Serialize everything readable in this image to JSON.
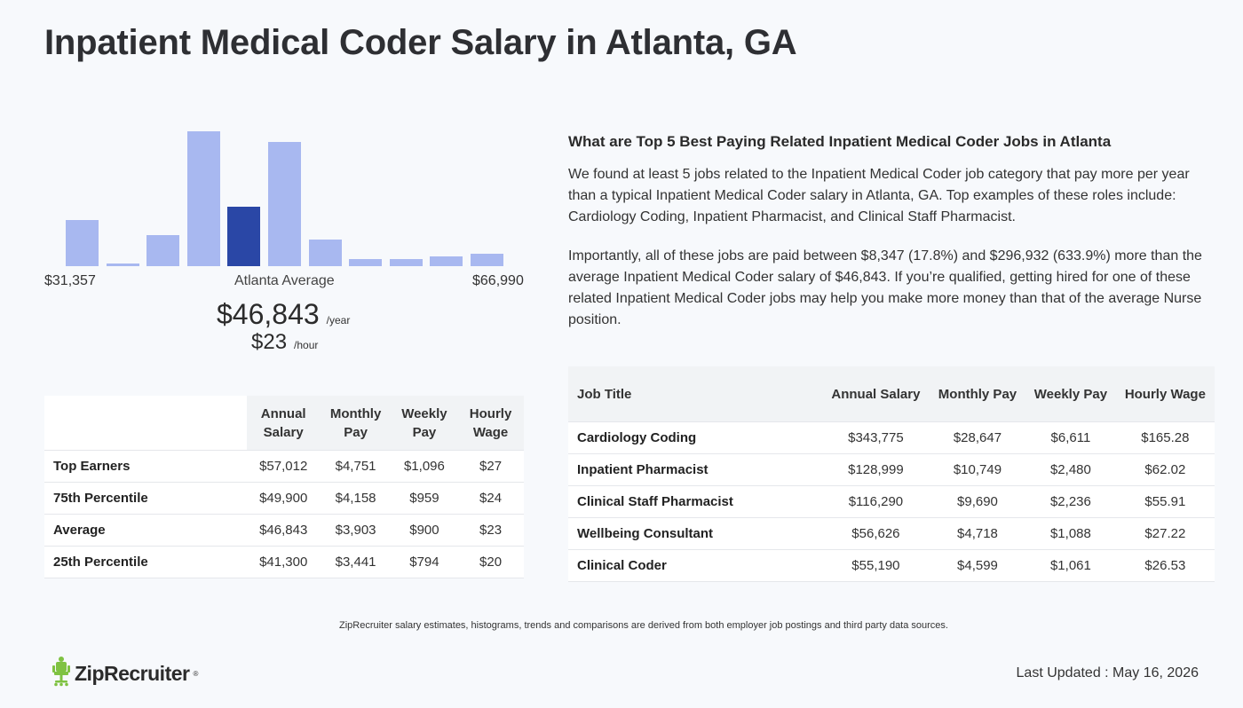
{
  "page": {
    "title": "Inpatient Medical Coder Salary in Atlanta, GA"
  },
  "histogram": {
    "min_label": "$31,357",
    "max_label": "$66,990",
    "avg_label": "Atlanta Average",
    "bar_color": "#a8b8f0",
    "active_color": "#2a47a6",
    "bars": [
      0.34,
      0.02,
      0.23,
      1.0,
      0.44,
      0.92,
      0.2,
      0.05,
      0.05,
      0.07,
      0.09
    ],
    "active_index": 4
  },
  "average": {
    "yearly": "$46,843",
    "yearly_unit": "/year",
    "hourly": "$23",
    "hourly_unit": "/hour"
  },
  "percentile_table": {
    "headers": [
      "Annual Salary",
      "Monthly Pay",
      "Weekly Pay",
      "Hourly Wage"
    ],
    "rows": [
      {
        "label": "Top Earners",
        "values": [
          "$57,012",
          "$4,751",
          "$1,096",
          "$27"
        ]
      },
      {
        "label": "75th Percentile",
        "values": [
          "$49,900",
          "$4,158",
          "$959",
          "$24"
        ]
      },
      {
        "label": "Average",
        "values": [
          "$46,843",
          "$3,903",
          "$900",
          "$23"
        ]
      },
      {
        "label": "25th Percentile",
        "values": [
          "$41,300",
          "$3,441",
          "$794",
          "$20"
        ]
      }
    ]
  },
  "related": {
    "title": "What are Top 5 Best Paying Related Inpatient Medical Coder Jobs in Atlanta",
    "paragraph1": "We found at least 5 jobs related to the Inpatient Medical Coder job category that pay more per year than a typical Inpatient Medical Coder salary in Atlanta, GA. Top examples of these roles include: Cardiology Coding, Inpatient Pharmacist, and Clinical Staff Pharmacist.",
    "paragraph2": "Importantly, all of these jobs are paid between $8,347 (17.8%) and $296,932 (633.9%) more than the average Inpatient Medical Coder salary of $46,843. If you’re qualified, getting hired for one of these related Inpatient Medical Coder jobs may help you make more money than that of the average Nurse position."
  },
  "jobs_table": {
    "headers": [
      "Job Title",
      "Annual Salary",
      "Monthly Pay",
      "Weekly Pay",
      "Hourly Wage"
    ],
    "rows": [
      {
        "title": "Cardiology Coding",
        "values": [
          "$343,775",
          "$28,647",
          "$6,611",
          "$165.28"
        ]
      },
      {
        "title": "Inpatient Pharmacist",
        "values": [
          "$128,999",
          "$10,749",
          "$2,480",
          "$62.02"
        ]
      },
      {
        "title": "Clinical Staff Pharmacist",
        "values": [
          "$116,290",
          "$9,690",
          "$2,236",
          "$55.91"
        ]
      },
      {
        "title": "Wellbeing Consultant",
        "values": [
          "$56,626",
          "$4,718",
          "$1,088",
          "$27.22"
        ]
      },
      {
        "title": "Clinical Coder",
        "values": [
          "$55,190",
          "$4,599",
          "$1,061",
          "$26.53"
        ]
      }
    ]
  },
  "footer": {
    "note": "ZipRecruiter salary estimates, histograms, trends and comparisons are derived from both employer job postings and third party data sources.",
    "logo_text": "ZipRecruiter",
    "logo_reg": "®",
    "logo_color": "#7fc242",
    "last_updated": "Last Updated : May 16, 2026"
  }
}
